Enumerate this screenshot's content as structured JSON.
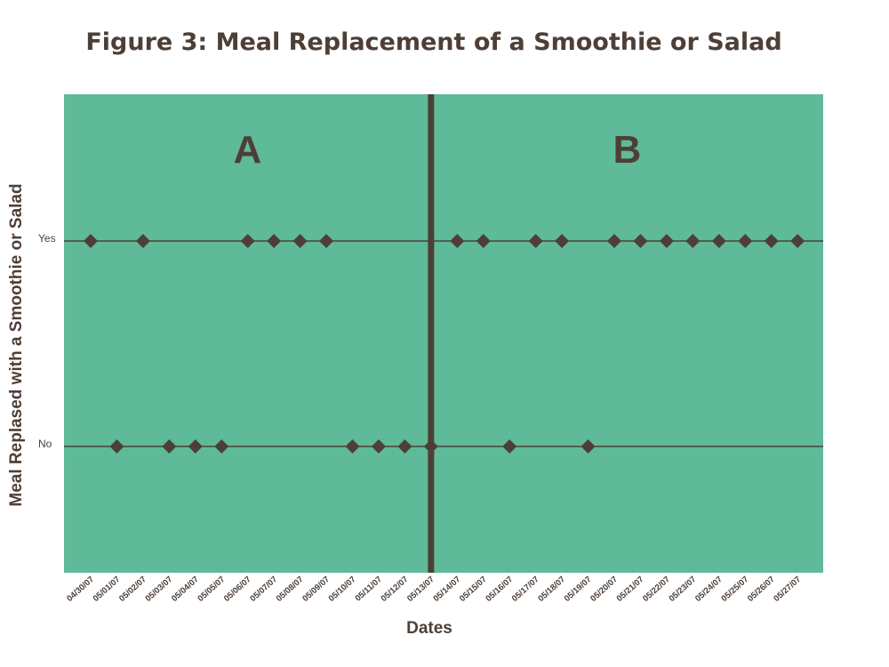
{
  "chart_data": {
    "type": "scatter",
    "title": "Figure 3: Meal Replacement of a Smoothie or Salad",
    "xlabel": "Dates",
    "ylabel": "Meal Replased with a Smoothie or Salad",
    "y_categories": [
      "No",
      "Yes"
    ],
    "x": [
      "04/30/07",
      "05/01/07",
      "05/02/07",
      "05/03/07",
      "05/04/07",
      "05/05/07",
      "05/06/07",
      "05/07/07",
      "05/08/07",
      "05/09/07",
      "05/10/07",
      "05/11/07",
      "05/12/07",
      "05/13/07",
      "05/14/07",
      "05/15/07",
      "05/16/07",
      "05/17/07",
      "05/18/07",
      "05/19/07",
      "05/20/07",
      "05/21/07",
      "05/22/07",
      "05/23/07",
      "05/24/07",
      "05/25/07",
      "05/26/07",
      "05/27/07"
    ],
    "y": [
      "Yes",
      "No",
      "Yes",
      "No",
      "No",
      "No",
      "Yes",
      "Yes",
      "Yes",
      "Yes",
      "No",
      "No",
      "No",
      "No",
      "Yes",
      "Yes",
      "No",
      "Yes",
      "Yes",
      "No",
      "Yes",
      "Yes",
      "Yes",
      "Yes",
      "Yes",
      "Yes",
      "Yes",
      "Yes"
    ],
    "phases": [
      {
        "label": "A",
        "start": "04/30/07",
        "end": "05/13/07"
      },
      {
        "label": "B",
        "start": "05/14/07",
        "end": "05/27/07"
      }
    ],
    "phase_change_after": "05/13/07",
    "grid": false,
    "legend": "none"
  },
  "colors": {
    "plot_bg": "#5fba99",
    "marker": "#4e3f36",
    "text": "#4e3f36",
    "background": "#ffffff"
  }
}
